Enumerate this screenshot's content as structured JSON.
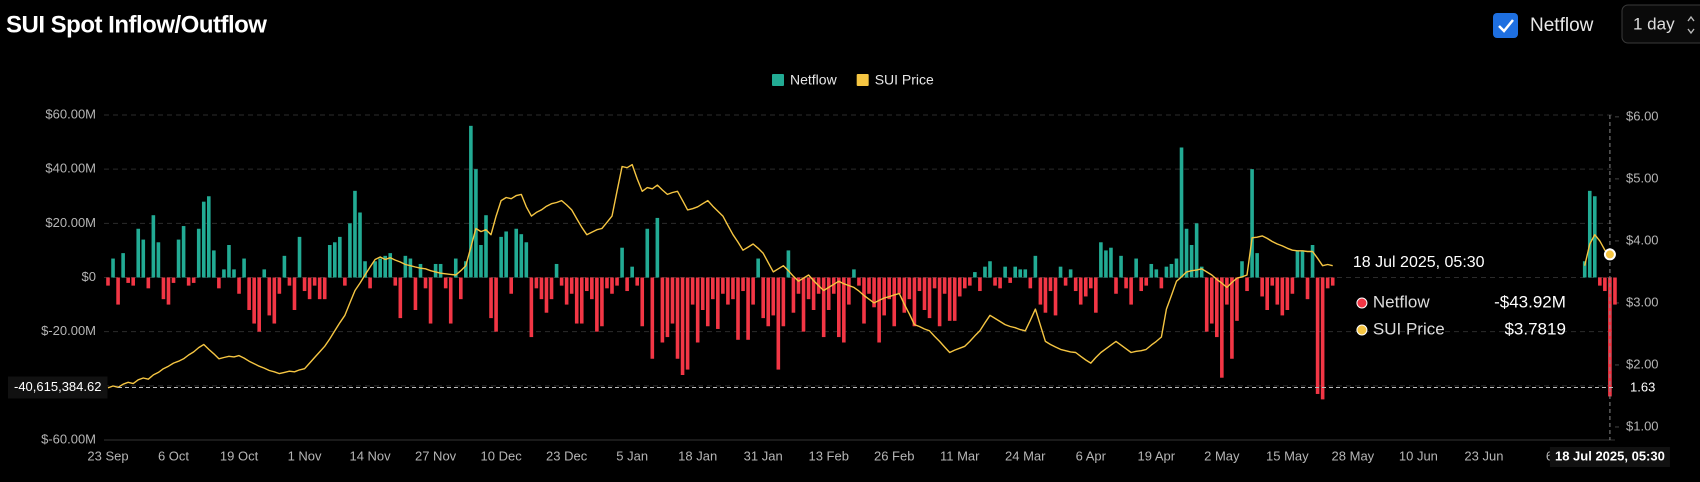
{
  "header": {
    "title": "SUI Spot Inflow/Outflow",
    "toggle_label": "Netflow",
    "interval": "1 day"
  },
  "chart_data": {
    "type": "bar_line",
    "legend": "top",
    "grid": true,
    "categories": [
      "23 Sep",
      null,
      null,
      null,
      null,
      null,
      null,
      null,
      null,
      null,
      null,
      null,
      null,
      "6 Oct",
      null,
      null,
      null,
      null,
      null,
      null,
      null,
      null,
      null,
      null,
      null,
      null,
      "19 Oct",
      null,
      null,
      null,
      null,
      null,
      null,
      null,
      null,
      null,
      null,
      null,
      null,
      "1 Nov",
      null,
      null,
      null,
      null,
      null,
      null,
      null,
      null,
      null,
      null,
      null,
      null,
      "14 Nov",
      null,
      null,
      null,
      null,
      null,
      null,
      null,
      null,
      null,
      null,
      null,
      null,
      "27 Nov",
      null,
      null,
      null,
      null,
      null,
      null,
      null,
      null,
      null,
      null,
      null,
      null,
      "10 Dec",
      null,
      null,
      null,
      null,
      null,
      null,
      null,
      null,
      null,
      null,
      null,
      null,
      "23 Dec",
      null,
      null,
      null,
      null,
      null,
      null,
      null,
      null,
      null,
      null,
      null,
      null,
      "5 Jan",
      null,
      null,
      null,
      null,
      null,
      null,
      null,
      null,
      null,
      null,
      null,
      null,
      "18 Jan",
      null,
      null,
      null,
      null,
      null,
      null,
      null,
      null,
      null,
      null,
      null,
      null,
      "31 Jan",
      null,
      null,
      null,
      null,
      null,
      null,
      null,
      null,
      null,
      null,
      null,
      null,
      "13 Feb",
      null,
      null,
      null,
      null,
      null,
      null,
      null,
      null,
      null,
      null,
      null,
      null,
      "26 Feb",
      null,
      null,
      null,
      null,
      null,
      null,
      null,
      null,
      null,
      null,
      null,
      null,
      "11 Mar",
      null,
      null,
      null,
      null,
      null,
      null,
      null,
      null,
      null,
      null,
      null,
      null,
      "24 Mar",
      null,
      null,
      null,
      null,
      null,
      null,
      null,
      null,
      null,
      null,
      null,
      null,
      "6 Apr",
      null,
      null,
      null,
      null,
      null,
      null,
      null,
      null,
      null,
      null,
      null,
      null,
      "19 Apr",
      null,
      null,
      null,
      null,
      null,
      null,
      null,
      null,
      null,
      null,
      null,
      null,
      "2 May",
      null,
      null,
      null,
      null,
      null,
      null,
      null,
      null,
      null,
      null,
      null,
      null,
      "15 May",
      null,
      null,
      null,
      null,
      null,
      null,
      null,
      null,
      null,
      null,
      null,
      null,
      "28 May",
      null,
      null,
      null,
      null,
      null,
      null,
      null,
      null,
      null,
      null,
      null,
      null,
      "10 Jun",
      null,
      null,
      null,
      null,
      null,
      null,
      null,
      null,
      null,
      null,
      null,
      null,
      "23 Jun",
      null,
      null,
      null,
      null,
      null,
      null,
      null,
      null,
      null,
      null,
      null,
      null,
      "6",
      null,
      null,
      null,
      null,
      null,
      null,
      null,
      null,
      null,
      null,
      null,
      "18 Jul 2025, 05:30",
      null
    ],
    "series": [
      {
        "name": "Netflow",
        "color": "#22ab94",
        "negative_color": "#f23645",
        "values": [
          -3000000.0,
          7000000.0,
          -10000000.0,
          9000000.0,
          -2000000.0,
          -3000000.0,
          18000000.0,
          14000000.0,
          -4000000.0,
          23000000.0,
          13000000.0,
          -8000000.0,
          -10000000.0,
          -2000000.0,
          14000000.0,
          19000000.0,
          -3000000.0,
          -2000000.0,
          18000000.0,
          28000000.0,
          30000000.0,
          10000000.0,
          -4000000.0,
          3000000.0,
          12000000.0,
          3000000.0,
          -6000000.0,
          7000000.0,
          -12000000.0,
          -17000000.0,
          -20000000.0,
          3000000.0,
          -14000000.0,
          -17000000.0,
          -6000000.0,
          8000000.0,
          -3000000.0,
          -12000000.0,
          15000000.0,
          -5000000.0,
          -8000000.0,
          -3000000.0,
          -8000000.0,
          -8000000.0,
          12000000.0,
          13000000.0,
          15000000.0,
          -3000000.0,
          20000000.0,
          32000000.0,
          24000000.0,
          6000000.0,
          -4000000.0,
          6000000.0,
          7000000.0,
          8000000.0,
          9000000.0,
          -3000000.0,
          -15000000.0,
          8000000.0,
          7000000.0,
          -12000000.0,
          5000000.0,
          -4000000.0,
          -17000000.0,
          5000000.0,
          5000000.0,
          -4000000.0,
          -17000000.0,
          7000000.0,
          -8000000.0,
          6000000.0,
          56000000.0,
          40000000.0,
          12000000.0,
          23000000.0,
          -15000000.0,
          -20000000.0,
          15000000.0,
          17000000.0,
          -6000000.0,
          18000000.0,
          16000000.0,
          13000000.0,
          -22000000.0,
          -4000000.0,
          -8000000.0,
          -13000000.0,
          -8000000.0,
          5000000.0,
          -3000000.0,
          -10000000.0,
          -6000000.0,
          -17000000.0,
          -17000000.0,
          -5000000.0,
          -8000000.0,
          -20000000.0,
          -18000000.0,
          -4000000.0,
          -6000000.0,
          -3000000.0,
          11000000.0,
          -5000000.0,
          4000000.0,
          -3000000.0,
          -18000000.0,
          18000000.0,
          -30000000.0,
          22000000.0,
          -24000000.0,
          -22000000.0,
          -17000000.0,
          -30000000.0,
          -36000000.0,
          -34000000.0,
          -10000000.0,
          -24000000.0,
          -12000000.0,
          -18000000.0,
          -8000000.0,
          -19000000.0,
          -6000000.0,
          -10000000.0,
          -8000000.0,
          -23000000.0,
          -5000000.0,
          -23000000.0,
          -10000000.0,
          7000000.0,
          -15000000.0,
          -18000000.0,
          -14000000.0,
          -34000000.0,
          -18000000.0,
          10000000.0,
          -13000000.0,
          -6000000.0,
          -20000000.0,
          -8000000.0,
          -12000000.0,
          -6000000.0,
          -22000000.0,
          -12000000.0,
          -6000000.0,
          -22000000.0,
          -24000000.0,
          -10000000.0,
          3000000.0,
          -3000000.0,
          -17000000.0,
          -6000000.0,
          -11000000.0,
          -24000000.0,
          -14000000.0,
          -8000000.0,
          -18000000.0,
          -6000000.0,
          -13000000.0,
          -8000000.0,
          -18000000.0,
          -5000000.0,
          -12000000.0,
          -15000000.0,
          -4000000.0,
          -18000000.0,
          -6000000.0,
          -16000000.0,
          -16000000.0,
          -7000000.0,
          -4000000.0,
          -3000000.0,
          2000000.0,
          -5000000.0,
          4000000.0,
          6000000.0,
          -3000000.0,
          -4000000.0,
          4000000.0,
          -2000000.0,
          4000000.0,
          3000000.0,
          3000000.0,
          -4000000.0,
          8000000.0,
          -10000000.0,
          -13000000.0,
          -5000000.0,
          -14000000.0,
          4000000.0,
          -3000000.0,
          3000000.0,
          -5000000.0,
          -10000000.0,
          -7000000.0,
          -4000000.0,
          -13000000.0,
          13000000.0,
          10000000.0,
          11000000.0,
          -6000000.0,
          8000000.0,
          -4000000.0,
          -10000000.0,
          7000000.0,
          -5000000.0,
          -3000000.0,
          5000000.0,
          3000000.0,
          -4000000.0,
          4000000.0,
          5000000.0,
          7000000.0,
          48000000.0,
          18000000.0,
          12000000.0,
          20000000.0,
          4000000.0,
          -20000000.0,
          -17000000.0,
          -22000000.0,
          -37000000.0,
          -10000000.0,
          -30000000.0,
          -16000000.0,
          6000000.0,
          -5000000.0,
          40000000.0,
          9000000.0,
          -7000000.0,
          -12000000.0,
          -3000000.0,
          -10000000.0,
          -14000000.0,
          -12000000.0,
          -6000000.0,
          10000000.0,
          10000000.0,
          -8000000.0,
          12000000.0,
          -43000000.0,
          -45000000.0,
          -4000000.0,
          -3000000.0,
          null,
          null,
          null,
          null,
          null,
          null,
          null,
          null,
          null,
          null,
          null,
          null,
          null,
          null,
          null,
          null,
          null,
          null,
          null,
          null,
          null,
          null,
          null,
          null,
          null,
          null,
          null,
          null,
          null,
          null,
          null,
          null,
          null,
          null,
          null,
          null,
          null,
          null,
          null,
          null,
          null,
          null,
          null,
          null,
          null,
          null,
          null,
          null,
          null,
          6000000.0,
          32000000.0,
          30000000.0,
          -3000000.0,
          -5000000.0,
          -43920000.0,
          -10000000.0
        ]
      },
      {
        "name": "SUI Price",
        "color": "#f5c542",
        "axis": "y2",
        "values": [
          1.63,
          1.66,
          1.64,
          1.69,
          1.72,
          1.7,
          1.76,
          1.79,
          1.77,
          1.84,
          1.88,
          1.94,
          1.98,
          2.03,
          2.06,
          2.1,
          2.16,
          2.21,
          2.28,
          2.33,
          2.25,
          2.18,
          2.1,
          2.12,
          2.14,
          2.13,
          2.15,
          2.11,
          2.06,
          2.02,
          1.98,
          1.95,
          1.91,
          1.89,
          1.86,
          1.88,
          1.9,
          1.89,
          1.92,
          1.94,
          2.03,
          2.12,
          2.21,
          2.3,
          2.42,
          2.55,
          2.68,
          2.8,
          3.0,
          3.2,
          3.32,
          3.45,
          3.58,
          3.7,
          3.74,
          3.7,
          3.73,
          3.69,
          3.66,
          3.62,
          3.6,
          3.58,
          3.56,
          3.55,
          3.52,
          3.5,
          3.48,
          3.47,
          3.46,
          3.45,
          3.52,
          3.6,
          3.9,
          4.2,
          4.15,
          4.18,
          4.1,
          4.4,
          4.65,
          4.7,
          4.68,
          4.73,
          4.75,
          4.55,
          4.4,
          4.46,
          4.5,
          4.56,
          4.6,
          4.62,
          4.65,
          4.58,
          4.5,
          4.36,
          4.22,
          4.1,
          4.14,
          4.18,
          4.2,
          4.3,
          4.4,
          4.8,
          5.2,
          5.18,
          5.23,
          5.0,
          4.8,
          4.86,
          4.84,
          4.9,
          4.82,
          4.75,
          4.78,
          4.8,
          4.65,
          4.5,
          4.52,
          4.55,
          4.6,
          4.65,
          4.56,
          4.48,
          4.4,
          4.25,
          4.1,
          3.98,
          3.85,
          3.9,
          3.95,
          3.88,
          3.8,
          3.65,
          3.5,
          3.55,
          3.6,
          3.52,
          3.43,
          3.35,
          3.4,
          3.45,
          3.36,
          3.28,
          3.2,
          3.25,
          3.3,
          3.35,
          3.31,
          3.28,
          3.25,
          3.19,
          3.12,
          3.06,
          3.0,
          3.04,
          3.08,
          3.1,
          3.13,
          3.15,
          2.98,
          2.82,
          2.65,
          2.62,
          2.58,
          2.55,
          2.46,
          2.38,
          2.29,
          2.2,
          2.24,
          2.27,
          2.3,
          2.38,
          2.47,
          2.55,
          2.68,
          2.8,
          2.75,
          2.7,
          2.65,
          2.62,
          2.6,
          2.57,
          2.55,
          2.72,
          2.9,
          2.64,
          2.38,
          2.33,
          2.29,
          2.25,
          2.23,
          2.21,
          2.2,
          2.14,
          2.08,
          2.03,
          2.12,
          2.2,
          2.26,
          2.32,
          2.38,
          2.32,
          2.26,
          2.2,
          2.22,
          2.23,
          2.25,
          2.32,
          2.38,
          2.45,
          2.9,
          3.12,
          3.35,
          3.42,
          3.5,
          3.52,
          3.53,
          3.55,
          3.5,
          3.45,
          3.38,
          3.32,
          3.25,
          3.33,
          3.4,
          3.42,
          3.45,
          4.05,
          4.06,
          4.08,
          4.04,
          3.99,
          3.95,
          3.92,
          3.88,
          3.85,
          3.84,
          3.84,
          3.83,
          3.83,
          3.72,
          3.6,
          3.62,
          3.6,
          null,
          null,
          null,
          null,
          null,
          null,
          null,
          null,
          null,
          null,
          null,
          null,
          null,
          null,
          null,
          null,
          null,
          null,
          null,
          null,
          null,
          null,
          null,
          null,
          null,
          null,
          null,
          null,
          null,
          null,
          null,
          null,
          null,
          null,
          null,
          null,
          null,
          null,
          null,
          null,
          null,
          null,
          null,
          null,
          null,
          null,
          null,
          null,
          null,
          3.6,
          3.95,
          4.1,
          4.0,
          3.85,
          3.7819,
          null
        ]
      }
    ],
    "ylim": [
      -60000000,
      60000000
    ],
    "yticks": [
      {
        "value": 60000000,
        "label": "$60.00M"
      },
      {
        "value": 40000000,
        "label": "$40.00M"
      },
      {
        "value": 20000000,
        "label": "$20.00M"
      },
      {
        "value": 0,
        "label": "$0"
      },
      {
        "value": -20000000,
        "label": "$-20.00M"
      },
      {
        "value": -40000000,
        "label": "$-40.00M"
      },
      {
        "value": -60000000,
        "label": "$-60.00M"
      }
    ],
    "y2lim": [
      0.79,
      6.03
    ],
    "y2ticks": [
      {
        "value": 6,
        "label": "$6.00"
      },
      {
        "value": 5,
        "label": "$5.00"
      },
      {
        "value": 4,
        "label": "$4.00"
      },
      {
        "value": 3,
        "label": "$3.00"
      },
      {
        "value": 2,
        "label": "$2.00"
      },
      {
        "value": 1,
        "label": "$1.00"
      }
    ],
    "crosshair": {
      "y_value": -40615384.62,
      "y_label": "-40,615,384.62",
      "y2_value": 1.63
    },
    "tooltip": {
      "title": "18 Jul 2025, 05:30",
      "netflow_label": "-$43.92M",
      "price_label": "$3.7819"
    }
  }
}
